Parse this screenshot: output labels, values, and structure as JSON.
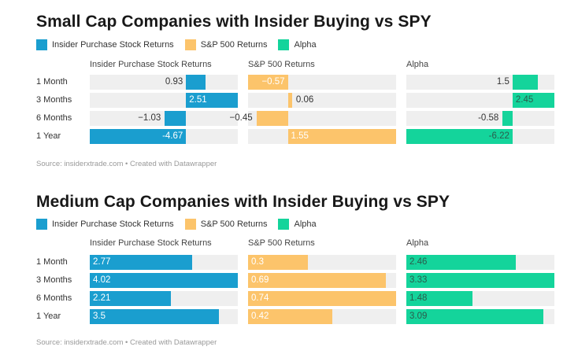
{
  "colors": {
    "insider": "#1a9ecf",
    "sp500": "#fcc46b",
    "alpha": "#14d49b",
    "track": "#efefef"
  },
  "chart_data": [
    {
      "type": "bar",
      "orientation": "horizontal",
      "title": "Small Cap Companies with Insider Buying vs SPY",
      "legend": [
        "Insider Purchase Stock Returns",
        "S&P 500 Returns",
        "Alpha"
      ],
      "legend_position": "top-left",
      "categories": [
        "1 Month",
        "3 Months",
        "6 Months",
        "1 Year"
      ],
      "series": [
        {
          "name": "Insider Purchase Stock Returns",
          "values": [
            0.93,
            2.51,
            -1.03,
            -4.67
          ]
        },
        {
          "name": "S&P 500 Returns",
          "values": [
            -0.57,
            0.06,
            -0.45,
            1.55
          ]
        },
        {
          "name": "Alpha",
          "values": [
            1.5,
            2.45,
            -0.58,
            -6.22
          ]
        }
      ],
      "value_labels": {
        "Insider Purchase Stock Returns": [
          "0.93",
          "2.51",
          "−1.03",
          "-4.67"
        ],
        "S&P 500 Returns": [
          "−0.57",
          "0.06",
          "−0.45",
          "1.55"
        ],
        "Alpha": [
          "1.5",
          "2.45",
          "-0.58",
          "-6.22"
        ]
      },
      "source": "Source: insiderxtrade.com • Created with Datawrapper",
      "grid": false
    },
    {
      "type": "bar",
      "orientation": "horizontal",
      "title": "Medium Cap Companies with Insider Buying vs SPY",
      "legend": [
        "Insider Purchase Stock Returns",
        "S&P 500 Returns",
        "Alpha"
      ],
      "legend_position": "top-left",
      "categories": [
        "1 Month",
        "3 Months",
        "6 Months",
        "1 Year"
      ],
      "series": [
        {
          "name": "Insider Purchase Stock Returns",
          "values": [
            2.77,
            4.02,
            2.21,
            3.5
          ]
        },
        {
          "name": "S&P 500 Returns",
          "values": [
            0.3,
            0.69,
            0.74,
            0.42
          ]
        },
        {
          "name": "Alpha",
          "values": [
            2.46,
            3.33,
            1.48,
            3.09
          ]
        }
      ],
      "value_labels": {
        "Insider Purchase Stock Returns": [
          "2.77",
          "4.02",
          "2.21",
          "3.5"
        ],
        "S&P 500 Returns": [
          "0.3",
          "0.69",
          "0.74",
          "0.42"
        ],
        "Alpha": [
          "2.46",
          "3.33",
          "1.48",
          "3.09"
        ]
      },
      "source": "Source: insiderxtrade.com • Created with Datawrapper",
      "grid": false
    }
  ]
}
